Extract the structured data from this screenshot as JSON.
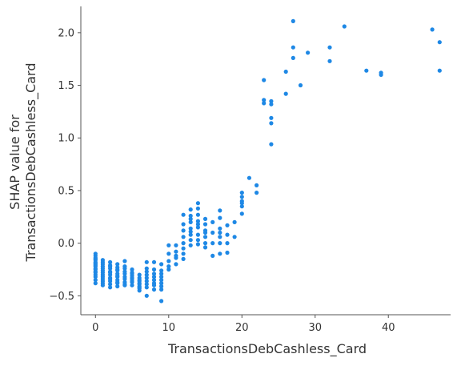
{
  "chart_data": {
    "type": "scatter",
    "title": "",
    "xlabel": "TransactionsDebCashless_Card",
    "ylabel_lines": [
      "SHAP value for",
      "TransactionsDebCashless_Card"
    ],
    "xlim": [
      -2,
      48.5
    ],
    "ylim": [
      -0.68,
      2.25
    ],
    "xticks": [
      0,
      10,
      20,
      30,
      40
    ],
    "yticks": [
      -0.5,
      0.0,
      0.5,
      1.0,
      1.5,
      2.0
    ],
    "ytick_labels": [
      "−0.5",
      "0.0",
      "0.5",
      "1.0",
      "1.5",
      "2.0"
    ],
    "grid": false,
    "marker_color": "#1E88E5",
    "series": [
      {
        "x": [
          0,
          0,
          0,
          0,
          0,
          0,
          0,
          0,
          0,
          0,
          0,
          0,
          0,
          0,
          0,
          0,
          0,
          0,
          1,
          1,
          1,
          1,
          1,
          1,
          1,
          1,
          1,
          1,
          1,
          1,
          1,
          2,
          2,
          2,
          2,
          2,
          2,
          2,
          2,
          2,
          2,
          2,
          2,
          3,
          3,
          3,
          3,
          3,
          3,
          3,
          3,
          3,
          3,
          3,
          4,
          4,
          4,
          4,
          4,
          4,
          4,
          4,
          4,
          4,
          5,
          5,
          5,
          5,
          5,
          5,
          5,
          5,
          5,
          6,
          6,
          6,
          6,
          6,
          6,
          6,
          6,
          6,
          6,
          7,
          7,
          7,
          7,
          7,
          7,
          7,
          7,
          7,
          8,
          8,
          8,
          8,
          8,
          8,
          8,
          8,
          9,
          9,
          9,
          9,
          9,
          9,
          9,
          9,
          9,
          10,
          10,
          10,
          10,
          10,
          11,
          11,
          11,
          11,
          11,
          12,
          12,
          12,
          12,
          12,
          12,
          12,
          12,
          13,
          13,
          13,
          13,
          13,
          13,
          13,
          13,
          13,
          14,
          14,
          14,
          14,
          14,
          14,
          14,
          14,
          14,
          15,
          15,
          15,
          15,
          15,
          15,
          15,
          16,
          16,
          16,
          16,
          17,
          17,
          17,
          17,
          17,
          17,
          17,
          18,
          18,
          18,
          18,
          19,
          19,
          20,
          20,
          20,
          20,
          20,
          20,
          21,
          22,
          22,
          23,
          23,
          23,
          24,
          24,
          24,
          24,
          24,
          26,
          26,
          27,
          27,
          27,
          28,
          29,
          32,
          32,
          34,
          37,
          39,
          39,
          46,
          47,
          47
        ],
        "y": [
          -0.12,
          -0.15,
          -0.18,
          -0.2,
          -0.22,
          -0.25,
          -0.27,
          -0.3,
          -0.32,
          -0.35,
          -0.38,
          -0.1,
          -0.14,
          -0.16,
          -0.19,
          -0.21,
          -0.24,
          -0.28,
          -0.16,
          -0.18,
          -0.2,
          -0.22,
          -0.24,
          -0.26,
          -0.28,
          -0.3,
          -0.32,
          -0.34,
          -0.36,
          -0.38,
          -0.4,
          -0.18,
          -0.21,
          -0.24,
          -0.27,
          -0.3,
          -0.33,
          -0.36,
          -0.39,
          -0.42,
          -0.22,
          -0.28,
          -0.34,
          -0.2,
          -0.23,
          -0.26,
          -0.29,
          -0.32,
          -0.35,
          -0.38,
          -0.41,
          -0.25,
          -0.31,
          -0.37,
          -0.17,
          -0.22,
          -0.27,
          -0.32,
          -0.37,
          -0.4,
          -0.24,
          -0.29,
          -0.34,
          -0.39,
          -0.25,
          -0.28,
          -0.31,
          -0.34,
          -0.37,
          -0.4,
          -0.29,
          -0.33,
          -0.36,
          -0.3,
          -0.33,
          -0.36,
          -0.39,
          -0.42,
          -0.45,
          -0.35,
          -0.38,
          -0.41,
          -0.43,
          -0.18,
          -0.24,
          -0.3,
          -0.36,
          -0.42,
          -0.5,
          -0.27,
          -0.33,
          -0.39,
          -0.18,
          -0.25,
          -0.32,
          -0.38,
          -0.44,
          -0.4,
          -0.29,
          -0.35,
          -0.2,
          -0.26,
          -0.32,
          -0.38,
          -0.44,
          -0.55,
          -0.29,
          -0.35,
          -0.41,
          -0.02,
          -0.1,
          -0.17,
          -0.22,
          -0.25,
          -0.02,
          -0.08,
          -0.14,
          -0.2,
          -0.12,
          0.27,
          0.18,
          0.12,
          0.06,
          0.0,
          -0.05,
          -0.1,
          -0.15,
          0.32,
          0.26,
          0.2,
          0.14,
          0.08,
          0.03,
          -0.02,
          0.23,
          0.11,
          0.38,
          0.33,
          0.27,
          0.21,
          0.15,
          0.08,
          0.03,
          -0.01,
          0.18,
          0.23,
          0.18,
          0.12,
          0.06,
          0.0,
          -0.04,
          0.1,
          0.2,
          0.1,
          0.0,
          -0.12,
          0.31,
          0.24,
          0.14,
          0.06,
          0.0,
          -0.1,
          0.1,
          0.17,
          0.08,
          0.0,
          -0.09,
          0.2,
          0.06,
          0.48,
          0.44,
          0.4,
          0.35,
          0.28,
          0.38,
          0.62,
          0.55,
          0.48,
          1.55,
          1.36,
          1.33,
          1.35,
          1.32,
          1.19,
          1.14,
          0.94,
          1.63,
          1.42,
          2.11,
          1.86,
          1.76,
          1.5,
          1.81,
          1.86,
          1.73,
          2.06,
          1.64,
          1.62,
          1.6,
          2.03,
          1.91,
          1.64
        ]
      }
    ]
  }
}
